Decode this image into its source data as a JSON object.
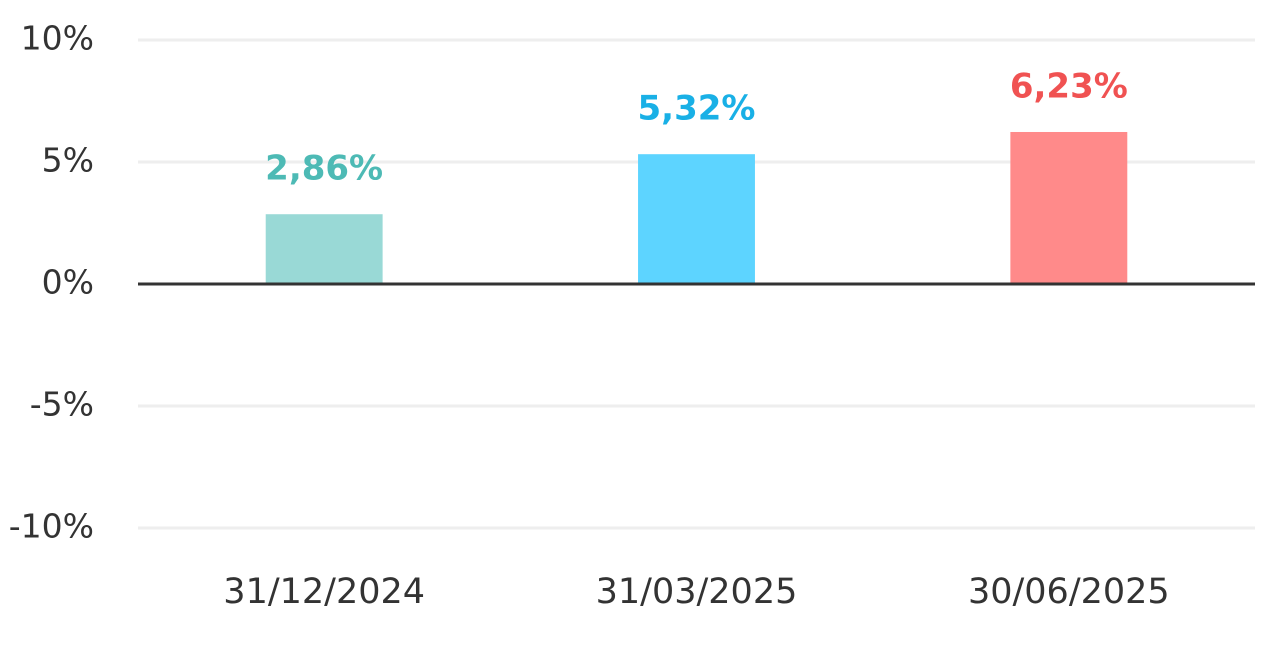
{
  "chart_data": {
    "type": "bar",
    "categories": [
      "31/12/2024",
      "31/03/2025",
      "30/06/2025"
    ],
    "values": [
      2.86,
      5.32,
      6.23
    ],
    "value_labels": [
      "2,86%",
      "5,32%",
      "6,23%"
    ],
    "colors": [
      "#99d9d6",
      "#5dd4ff",
      "#ff8a8a"
    ],
    "label_colors": [
      "#4dbab5",
      "#19b0e6",
      "#f05252"
    ],
    "ylim": [
      -10,
      10
    ],
    "yticks": [
      {
        "value": -10,
        "label": "-10%"
      },
      {
        "value": -5,
        "label": "-5%"
      },
      {
        "value": 0,
        "label": "0%"
      },
      {
        "value": 5,
        "label": "5%"
      },
      {
        "value": 10,
        "label": "10%"
      }
    ],
    "grid": true
  }
}
